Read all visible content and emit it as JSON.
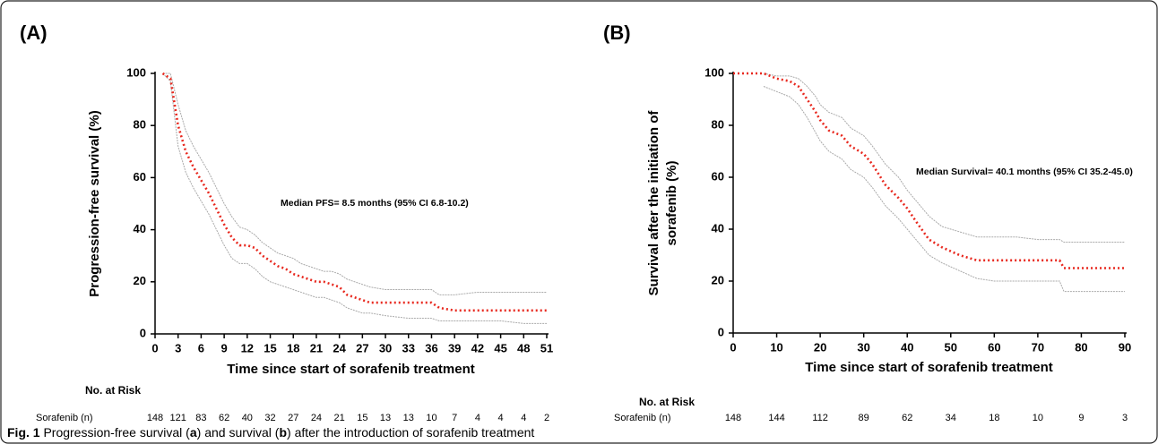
{
  "chart_data": [
    {
      "type": "line",
      "panel": "(A)",
      "ylabel": "Progression-free survival (%)",
      "xlabel": "Time since start of sorafenib treatment",
      "annotation": "Median PFS= 8.5 months (95% CI 6.8-10.2)",
      "xlim": [
        0,
        51
      ],
      "xticks": [
        0,
        3,
        6,
        9,
        12,
        15,
        18,
        21,
        24,
        27,
        30,
        33,
        36,
        39,
        42,
        45,
        48,
        51
      ],
      "ylim": [
        0,
        100
      ],
      "yticks": [
        0,
        20,
        40,
        60,
        80,
        100
      ],
      "x": [
        1,
        2,
        3,
        4,
        5,
        6,
        7,
        8,
        9,
        10,
        11,
        12,
        13,
        14,
        15,
        16,
        17,
        18,
        19,
        20,
        21,
        22,
        23,
        24,
        25,
        26,
        27,
        28,
        30,
        33,
        36,
        37,
        39,
        42,
        45,
        48,
        51
      ],
      "series": [
        {
          "color": "#aaaaaa",
          "values": [
            100,
            100,
            88,
            78,
            72,
            67,
            62,
            56,
            50,
            45,
            41,
            40,
            38,
            35,
            33,
            31,
            30,
            29,
            27,
            26,
            25,
            24,
            24,
            23,
            21,
            20,
            19,
            18,
            17,
            17,
            17,
            15,
            15,
            16,
            16,
            16,
            16
          ]
        },
        {
          "color": "#aaaaaa",
          "values": [
            100,
            97,
            72,
            62,
            56,
            51,
            46,
            40,
            34,
            29,
            27,
            27,
            25,
            22,
            20,
            19,
            18,
            17,
            16,
            15,
            14,
            14,
            13,
            12,
            10,
            9,
            8,
            8,
            7,
            6,
            6,
            5,
            5,
            5,
            5,
            4,
            4
          ]
        },
        {
          "color": "#e8281e",
          "values": [
            100,
            98,
            80,
            70,
            64,
            59,
            54,
            48,
            42,
            37,
            34,
            34,
            33,
            30,
            28,
            26,
            25,
            23,
            22,
            21,
            20,
            20,
            19,
            18,
            15,
            14,
            13,
            12,
            12,
            12,
            12,
            10,
            9,
            9,
            9,
            9,
            9
          ]
        }
      ],
      "risk_table": {
        "title": "No. at Risk",
        "row_label": "Sorafenib (n)",
        "counts": [
          148,
          121,
          83,
          62,
          40,
          32,
          27,
          24,
          21,
          15,
          13,
          13,
          10,
          7,
          4,
          4,
          4,
          2
        ]
      }
    },
    {
      "type": "line",
      "panel": "(B)",
      "ylabel": "Survival after the initiation of sorafenib (%)",
      "xlabel": "Time since start of sorafenib treatment",
      "annotation": "Median Survival= 40.1 months (95% CI 35.2-45.0)",
      "xlim": [
        0,
        90
      ],
      "xticks": [
        0,
        10,
        20,
        30,
        40,
        50,
        60,
        70,
        80,
        90
      ],
      "ylim": [
        0,
        100
      ],
      "yticks": [
        0,
        20,
        40,
        60,
        80,
        100
      ],
      "x": [
        0,
        7,
        10,
        13,
        15,
        17,
        19,
        20,
        22,
        25,
        27,
        30,
        32,
        35,
        38,
        40,
        42,
        45,
        48,
        52,
        56,
        60,
        65,
        70,
        75,
        76,
        80,
        85,
        90
      ],
      "series": [
        {
          "color": "#aaaaaa",
          "values": [
            null,
            100,
            99,
            99,
            98,
            95,
            91,
            88,
            85,
            83,
            79,
            76,
            72,
            65,
            60,
            55,
            51,
            45,
            41,
            39,
            37,
            37,
            37,
            36,
            36,
            35,
            35,
            35,
            35
          ]
        },
        {
          "color": "#aaaaaa",
          "values": [
            null,
            95,
            93,
            91,
            88,
            83,
            77,
            74,
            70,
            67,
            63,
            60,
            56,
            49,
            44,
            40,
            36,
            30,
            27,
            24,
            21,
            20,
            20,
            20,
            20,
            16,
            16,
            16,
            16
          ]
        },
        {
          "color": "#e8281e",
          "values": [
            100,
            100,
            98,
            97,
            95,
            90,
            85,
            82,
            78,
            76,
            72,
            69,
            65,
            57,
            52,
            48,
            43,
            36,
            33,
            30,
            28,
            28,
            28,
            28,
            28,
            25,
            25,
            25,
            25
          ]
        }
      ],
      "risk_table": {
        "title": "No. at Risk",
        "row_label": "Sorafenib (n)",
        "counts": [
          148,
          144,
          112,
          89,
          62,
          34,
          18,
          10,
          9,
          3
        ]
      }
    }
  ],
  "caption": [
    "Fig. 1",
    " Progression-free survival (",
    "a",
    ") and survival (",
    "b",
    ") after the introduction of sorafenib treatment"
  ]
}
